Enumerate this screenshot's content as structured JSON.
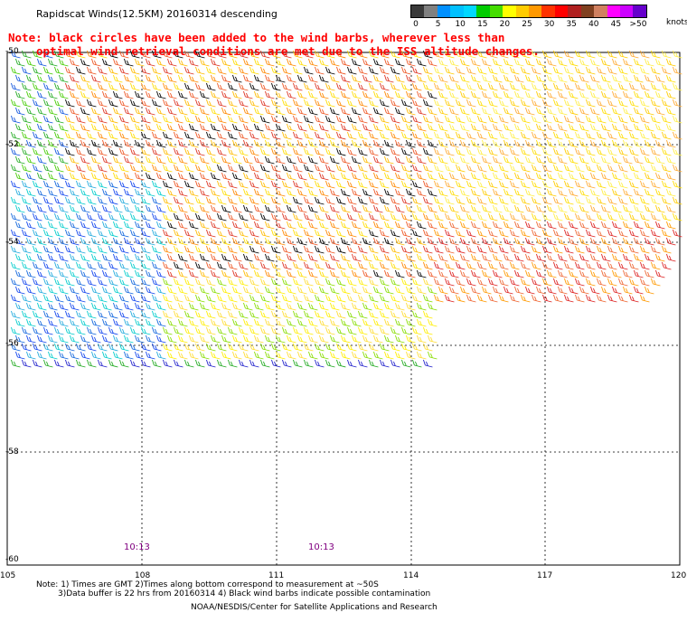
{
  "header": {
    "title": "Rapidscat Winds(12.5KM) 20160314 descending",
    "note_line1": "Note: black circles have been added to the wind barbs, wherever less than",
    "note_line2": "optimal wind retrieval conditions are met due to the ISS altitude changes."
  },
  "legend": {
    "labels": [
      "0",
      "5",
      "10",
      "15",
      "20",
      "25",
      "30",
      "35",
      "40",
      "45",
      ">50"
    ],
    "units": "knots",
    "colors": [
      "#3a3a3a",
      "#808080",
      "#0090ff",
      "#00c0ff",
      "#00d8ff",
      "#00cc00",
      "#44dd00",
      "#ffff00",
      "#ffcc00",
      "#ff9900",
      "#ff3300",
      "#ff0000",
      "#b02020",
      "#804020",
      "#d08060",
      "#ff00ff",
      "#cc00ff",
      "#6600cc"
    ]
  },
  "axes": {
    "lat_labels": [
      "-50",
      "-52",
      "-54",
      "-56",
      "-58",
      "-60"
    ],
    "lon_labels": [
      "105",
      "108",
      "111",
      "114",
      "117",
      "120"
    ]
  },
  "times": [
    "10:13",
    "10:13"
  ],
  "footer": {
    "note1": "Note: 1) Times are GMT 2)Times along bottom correspond to measurement at ~50S",
    "note2": "3)Data buffer is 22 hrs from 20160314 4) Black wind barbs indicate possible contamination",
    "credit": "NOAA/NESDIS/Center for Satellite Applications and Research"
  },
  "colors": {
    "grid": "#000000",
    "note_text": "#ff0000",
    "time_text": "#800080"
  }
}
